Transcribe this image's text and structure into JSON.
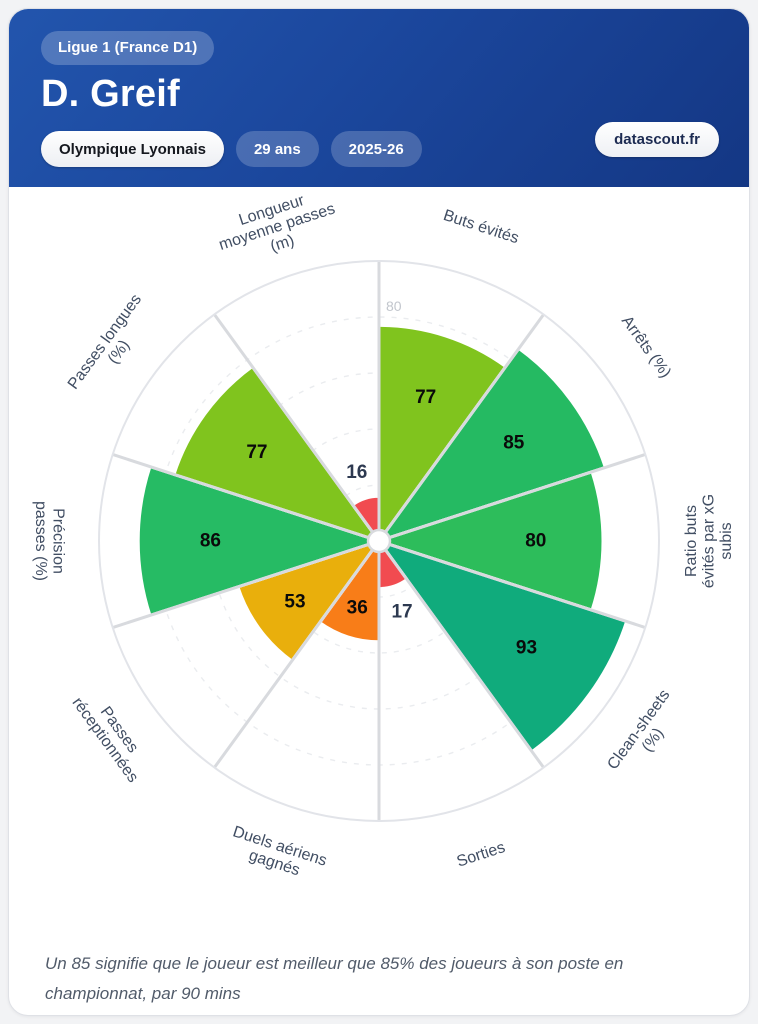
{
  "header": {
    "league_badge": "Ligue 1 (France D1)",
    "player_name": "D. Greif",
    "club": "Olympique Lyonnais",
    "age": "29 ans",
    "season": "2025-26",
    "brand": "datascout.fr",
    "header_color_start": "#2255ad",
    "header_color_end": "#143784"
  },
  "chart_data": {
    "type": "bar",
    "variant": "polar-pizza-percentile",
    "direction": "clockwise",
    "start_angle_deg": 0,
    "rlim": [
      0,
      100
    ],
    "grid_circles_pct": [
      20,
      40,
      60,
      80
    ],
    "r_tick_label": "80",
    "categories": [
      "Buts évités",
      "Arrêts (%)",
      "Ratio buts évités par xG subis",
      "Clean-sheets (%)",
      "Sorties",
      "Duels aériens gagnés",
      "Passes réceptionnées",
      "Précision passes (%)",
      "Passes longues (%)",
      "Longueur moyenne passes (m)"
    ],
    "values": [
      77,
      85,
      80,
      93,
      17,
      36,
      53,
      86,
      77,
      16
    ],
    "slices": [
      {
        "label": "Buts évités",
        "lines": [
          "Buts évités"
        ],
        "value": 77,
        "color": "#80c41e"
      },
      {
        "label": "Arrêts (%)",
        "lines": [
          "Arrêts (%)"
        ],
        "value": 85,
        "color": "#25ba62"
      },
      {
        "label": "Ratio buts évités par xG subis",
        "lines": [
          "Ratio buts",
          "évités par xG",
          "subis"
        ],
        "value": 80,
        "color": "#2dbd5b"
      },
      {
        "label": "Clean-sheets (%)",
        "lines": [
          "Clean-sheets",
          "(%)"
        ],
        "value": 93,
        "color": "#10ab7c"
      },
      {
        "label": "Sorties",
        "lines": [
          "Sorties"
        ],
        "value": 17,
        "color": "#f14b50"
      },
      {
        "label": "Duels aériens gagnés",
        "lines": [
          "Duels aériens",
          "gagnés"
        ],
        "value": 36,
        "color": "#f87d18"
      },
      {
        "label": "Passes réceptionnées",
        "lines": [
          "Passes",
          "réceptionnées"
        ],
        "value": 53,
        "color": "#e9af0c"
      },
      {
        "label": "Précision passes (%)",
        "lines": [
          "Précision",
          "passes (%)"
        ],
        "value": 86,
        "color": "#26bb64"
      },
      {
        "label": "Passes longues (%)",
        "lines": [
          "Passes longues",
          "(%)"
        ],
        "value": 77,
        "color": "#80c41e"
      },
      {
        "label": "Longueur moyenne passes (m)",
        "lines": [
          "Longueur",
          "moyenne passes",
          "(m)"
        ],
        "value": 16,
        "color": "#f14b50"
      }
    ],
    "style_colors": {
      "grid_dashed": "#eaecef",
      "spoke": "#d8dade",
      "outer_ring": "#e2e4e9",
      "category_label": "#414e63",
      "value_label_inside": "#0a0a0a",
      "value_label_outside": "#2d3950",
      "r_tick": "#c2c6cd"
    }
  },
  "footer": {
    "note_lines": [
      "Un 85 signifie que le joueur est meilleur que 85% des joueurs à son poste en",
      "championnat, par 90 mins"
    ]
  }
}
